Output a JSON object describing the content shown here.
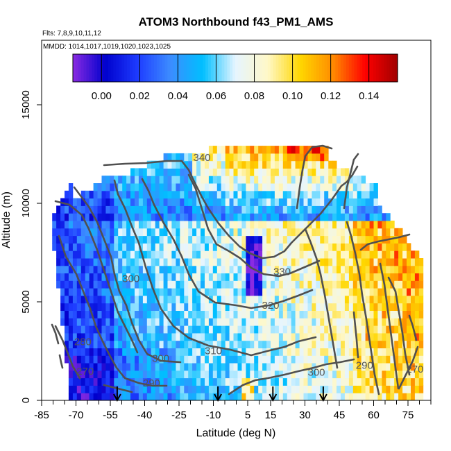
{
  "chart_data": {
    "type": "heatmap",
    "title": "ATOM3 Northbound f43_PM1_AMS",
    "subtitle_flights": "Flts: 7,8,9,10,11,12",
    "subtitle_dates": "MMDD: 1014,1017,1019,1020,1023,1025",
    "xlabel": "Latitude (deg N)",
    "ylabel": "Altitude (m)",
    "xlim": [
      -85,
      85
    ],
    "ylim": [
      0,
      17500
    ],
    "x_ticks": [
      -85,
      -70,
      -55,
      -40,
      -25,
      -10,
      5,
      15,
      30,
      45,
      60,
      75
    ],
    "y_ticks": [
      0,
      5000,
      10000,
      15000
    ],
    "colorbar": {
      "range": [
        -0.015,
        0.155
      ],
      "ticks": [
        "0.00",
        "0.02",
        "0.04",
        "0.06",
        "0.08",
        "0.10",
        "0.12",
        "0.14"
      ],
      "tick_values": [
        0.0,
        0.02,
        0.04,
        0.06,
        0.08,
        0.1,
        0.12,
        0.14
      ],
      "colors": [
        "#8a2be2",
        "#0000cd",
        "#1e3cff",
        "#3c8cff",
        "#00bfff",
        "#e6f5ff",
        "#fff8c8",
        "#ffd700",
        "#ff8c00",
        "#ff0000",
        "#a00000"
      ]
    },
    "contour_labels": [
      {
        "text": "340",
        "lat": -15,
        "alt": 12150
      },
      {
        "text": "330",
        "lat": 20,
        "alt": 6350
      },
      {
        "text": "320",
        "lat": 15,
        "alt": 4650
      },
      {
        "text": "310",
        "lat": -10,
        "alt": 2350
      },
      {
        "text": "300",
        "lat": -33,
        "alt": 1950
      },
      {
        "text": "300",
        "lat": -46,
        "alt": 6000
      },
      {
        "text": "300",
        "lat": 35,
        "alt": 1250
      },
      {
        "text": "290",
        "lat": -37,
        "alt": 700
      },
      {
        "text": "290",
        "lat": 56,
        "alt": 1600
      },
      {
        "text": "280",
        "lat": -67,
        "alt": 2800
      },
      {
        "text": "270",
        "lat": -66,
        "alt": 1300
      },
      {
        "text": "270",
        "lat": 78,
        "alt": 1400
      }
    ],
    "flight_arrows_lat": [
      -52,
      -8,
      16,
      38
    ]
  }
}
